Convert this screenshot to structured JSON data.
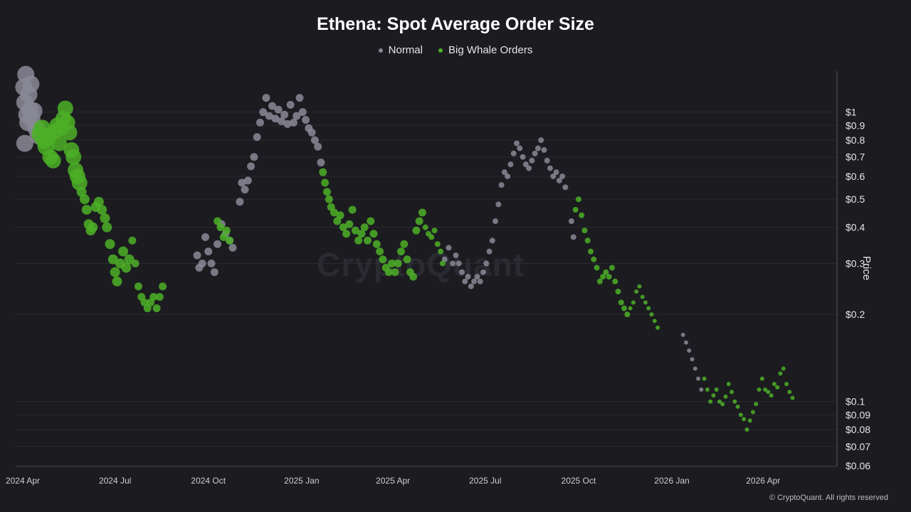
{
  "chart_data": {
    "type": "scatter",
    "title": "Ethena: Spot Average Order Size",
    "ylabel": "Price",
    "yscale": "log",
    "ylim": [
      0.06,
      1.45
    ],
    "y_ticks": [
      1,
      0.9,
      0.8,
      0.7,
      0.6,
      0.5,
      0.4,
      0.3,
      0.2,
      0.1,
      0.09,
      0.08,
      0.07,
      0.06
    ],
    "y_tick_labels": [
      "$1",
      "$0.9",
      "$0.8",
      "$0.7",
      "$0.6",
      "$0.5",
      "$0.4",
      "$0.3",
      "$0.2",
      "$0.1",
      "$0.09",
      "$0.08",
      "$0.07",
      "$0.06"
    ],
    "x_ticks": [
      "2024-04-01",
      "2024-07-01",
      "2024-10-01",
      "2025-01-01",
      "2025-04-01",
      "2025-07-01",
      "2025-10-01",
      "2026-01-01",
      "2026-04-01"
    ],
    "x_tick_labels": [
      "2024 Apr",
      "2024 Jul",
      "2024 Oct",
      "2025 Jan",
      "2025 Apr",
      "2025 Jul",
      "2025 Oct",
      "2026 Jan",
      "2026 Apr"
    ],
    "xlim": [
      "2024-03-25",
      "2026-06-10"
    ],
    "grid": true,
    "legend_position": "top-center",
    "series": [
      {
        "name": "Normal",
        "color": "#8a8896",
        "points": [
          [
            "2024-04-02",
            1.22
          ],
          [
            "2024-04-03",
            1.08
          ],
          [
            "2024-04-04",
            1.35
          ],
          [
            "2024-04-05",
            0.98
          ],
          [
            "2024-04-06",
            0.92
          ],
          [
            "2024-04-07",
            1.15
          ],
          [
            "2024-04-08",
            1.02
          ],
          [
            "2024-04-03",
            0.78
          ],
          [
            "2024-04-09",
            1.25
          ],
          [
            "2024-04-10",
            0.95
          ],
          [
            "2024-04-12",
            1.01
          ],
          [
            "2024-04-14",
            0.88
          ],
          [
            "2024-04-16",
            0.83
          ],
          [
            "2024-09-20",
            0.32
          ],
          [
            "2024-09-22",
            0.29
          ],
          [
            "2024-09-25",
            0.3
          ],
          [
            "2024-09-28",
            0.37
          ],
          [
            "2024-10-01",
            0.33
          ],
          [
            "2024-10-04",
            0.3
          ],
          [
            "2024-10-07",
            0.28
          ],
          [
            "2024-10-10",
            0.35
          ],
          [
            "2024-10-14",
            0.41
          ],
          [
            "2024-10-18",
            0.38
          ],
          [
            "2024-10-22",
            0.36
          ],
          [
            "2024-10-25",
            0.34
          ],
          [
            "2024-11-01",
            0.49
          ],
          [
            "2024-11-03",
            0.57
          ],
          [
            "2024-11-06",
            0.54
          ],
          [
            "2024-11-09",
            0.58
          ],
          [
            "2024-11-12",
            0.65
          ],
          [
            "2024-11-15",
            0.7
          ],
          [
            "2024-11-18",
            0.82
          ],
          [
            "2024-11-21",
            0.92
          ],
          [
            "2024-11-24",
            1.0
          ],
          [
            "2024-11-27",
            1.12
          ],
          [
            "2024-11-30",
            0.97
          ],
          [
            "2024-12-03",
            1.05
          ],
          [
            "2024-12-06",
            0.95
          ],
          [
            "2024-12-09",
            1.02
          ],
          [
            "2024-12-12",
            0.93
          ],
          [
            "2024-12-15",
            0.98
          ],
          [
            "2024-12-18",
            0.91
          ],
          [
            "2024-12-21",
            1.06
          ],
          [
            "2024-12-24",
            0.92
          ],
          [
            "2024-12-27",
            0.97
          ],
          [
            "2024-12-30",
            1.12
          ],
          [
            "2025-01-02",
            1.0
          ],
          [
            "2025-01-05",
            0.94
          ],
          [
            "2025-01-08",
            0.88
          ],
          [
            "2025-01-11",
            0.85
          ],
          [
            "2025-01-14",
            0.8
          ],
          [
            "2025-01-17",
            0.76
          ],
          [
            "2025-01-20",
            0.67
          ],
          [
            "2025-05-22",
            0.31
          ],
          [
            "2025-05-26",
            0.34
          ],
          [
            "2025-05-30",
            0.3
          ],
          [
            "2025-06-02",
            0.32
          ],
          [
            "2025-06-05",
            0.3
          ],
          [
            "2025-06-08",
            0.28
          ],
          [
            "2025-06-11",
            0.26
          ],
          [
            "2025-06-14",
            0.27
          ],
          [
            "2025-06-17",
            0.25
          ],
          [
            "2025-06-20",
            0.26
          ],
          [
            "2025-06-23",
            0.27
          ],
          [
            "2025-06-26",
            0.26
          ],
          [
            "2025-06-29",
            0.28
          ],
          [
            "2025-07-02",
            0.3
          ],
          [
            "2025-07-05",
            0.33
          ],
          [
            "2025-07-08",
            0.36
          ],
          [
            "2025-07-11",
            0.42
          ],
          [
            "2025-07-14",
            0.48
          ],
          [
            "2025-07-17",
            0.56
          ],
          [
            "2025-07-20",
            0.62
          ],
          [
            "2025-07-23",
            0.6
          ],
          [
            "2025-07-26",
            0.66
          ],
          [
            "2025-07-29",
            0.72
          ],
          [
            "2025-08-01",
            0.78
          ],
          [
            "2025-08-04",
            0.75
          ],
          [
            "2025-08-07",
            0.7
          ],
          [
            "2025-08-10",
            0.66
          ],
          [
            "2025-08-13",
            0.64
          ],
          [
            "2025-08-16",
            0.68
          ],
          [
            "2025-08-19",
            0.72
          ],
          [
            "2025-08-22",
            0.75
          ],
          [
            "2025-08-25",
            0.8
          ],
          [
            "2025-08-28",
            0.74
          ],
          [
            "2025-08-31",
            0.68
          ],
          [
            "2025-09-03",
            0.64
          ],
          [
            "2025-09-06",
            0.6
          ],
          [
            "2025-09-09",
            0.62
          ],
          [
            "2025-09-12",
            0.58
          ],
          [
            "2025-09-15",
            0.6
          ],
          [
            "2025-09-18",
            0.55
          ],
          [
            "2025-09-24",
            0.42
          ],
          [
            "2025-09-26",
            0.37
          ],
          [
            "2026-01-12",
            0.17
          ],
          [
            "2026-01-15",
            0.16
          ],
          [
            "2026-01-18",
            0.15
          ],
          [
            "2026-01-21",
            0.14
          ],
          [
            "2026-01-24",
            0.13
          ],
          [
            "2026-01-27",
            0.12
          ],
          [
            "2026-01-30",
            0.11
          ]
        ]
      },
      {
        "name": "Big Whale Orders",
        "color": "#4caf27",
        "points": [
          [
            "2024-04-18",
            0.84
          ],
          [
            "2024-04-20",
            0.88
          ],
          [
            "2024-04-22",
            0.8
          ],
          [
            "2024-04-24",
            0.76
          ],
          [
            "2024-04-26",
            0.82
          ],
          [
            "2024-04-28",
            0.7
          ],
          [
            "2024-05-01",
            0.68
          ],
          [
            "2024-05-03",
            0.86
          ],
          [
            "2024-05-05",
            0.9
          ],
          [
            "2024-05-07",
            0.78
          ],
          [
            "2024-05-09",
            0.88
          ],
          [
            "2024-05-11",
            0.95
          ],
          [
            "2024-05-13",
            1.03
          ],
          [
            "2024-05-15",
            0.92
          ],
          [
            "2024-05-17",
            0.85
          ],
          [
            "2024-05-19",
            0.74
          ],
          [
            "2024-05-21",
            0.7
          ],
          [
            "2024-05-23",
            0.63
          ],
          [
            "2024-05-25",
            0.6
          ],
          [
            "2024-05-27",
            0.57
          ],
          [
            "2024-05-29",
            0.53
          ],
          [
            "2024-06-01",
            0.5
          ],
          [
            "2024-06-03",
            0.46
          ],
          [
            "2024-06-05",
            0.41
          ],
          [
            "2024-06-07",
            0.39
          ],
          [
            "2024-06-09",
            0.4
          ],
          [
            "2024-06-12",
            0.47
          ],
          [
            "2024-06-15",
            0.49
          ],
          [
            "2024-06-18",
            0.46
          ],
          [
            "2024-06-21",
            0.43
          ],
          [
            "2024-06-23",
            0.4
          ],
          [
            "2024-06-26",
            0.35
          ],
          [
            "2024-06-29",
            0.31
          ],
          [
            "2024-07-01",
            0.28
          ],
          [
            "2024-07-03",
            0.26
          ],
          [
            "2024-07-06",
            0.3
          ],
          [
            "2024-07-09",
            0.33
          ],
          [
            "2024-07-12",
            0.29
          ],
          [
            "2024-07-15",
            0.31
          ],
          [
            "2024-07-18",
            0.36
          ],
          [
            "2024-07-21",
            0.3
          ],
          [
            "2024-07-24",
            0.25
          ],
          [
            "2024-07-27",
            0.23
          ],
          [
            "2024-07-30",
            0.22
          ],
          [
            "2024-08-02",
            0.21
          ],
          [
            "2024-08-05",
            0.22
          ],
          [
            "2024-08-08",
            0.23
          ],
          [
            "2024-08-11",
            0.21
          ],
          [
            "2024-08-14",
            0.23
          ],
          [
            "2024-08-17",
            0.25
          ],
          [
            "2024-10-10",
            0.42
          ],
          [
            "2024-10-13",
            0.4
          ],
          [
            "2024-10-16",
            0.37
          ],
          [
            "2024-10-19",
            0.39
          ],
          [
            "2024-10-22",
            0.36
          ],
          [
            "2025-01-22",
            0.62
          ],
          [
            "2025-01-24",
            0.57
          ],
          [
            "2025-01-26",
            0.53
          ],
          [
            "2025-01-28",
            0.5
          ],
          [
            "2025-01-30",
            0.47
          ],
          [
            "2025-02-02",
            0.45
          ],
          [
            "2025-02-05",
            0.42
          ],
          [
            "2025-02-08",
            0.44
          ],
          [
            "2025-02-11",
            0.4
          ],
          [
            "2025-02-14",
            0.38
          ],
          [
            "2025-02-17",
            0.41
          ],
          [
            "2025-02-20",
            0.46
          ],
          [
            "2025-02-23",
            0.39
          ],
          [
            "2025-02-26",
            0.36
          ],
          [
            "2025-03-01",
            0.38
          ],
          [
            "2025-03-04",
            0.4
          ],
          [
            "2025-03-07",
            0.36
          ],
          [
            "2025-03-10",
            0.42
          ],
          [
            "2025-03-13",
            0.38
          ],
          [
            "2025-03-16",
            0.35
          ],
          [
            "2025-03-19",
            0.33
          ],
          [
            "2025-03-22",
            0.31
          ],
          [
            "2025-03-25",
            0.29
          ],
          [
            "2025-03-28",
            0.28
          ],
          [
            "2025-03-31",
            0.3
          ],
          [
            "2025-04-03",
            0.28
          ],
          [
            "2025-04-06",
            0.3
          ],
          [
            "2025-04-09",
            0.33
          ],
          [
            "2025-04-12",
            0.35
          ],
          [
            "2025-04-15",
            0.31
          ],
          [
            "2025-04-18",
            0.28
          ],
          [
            "2025-04-21",
            0.27
          ],
          [
            "2025-04-24",
            0.39
          ],
          [
            "2025-04-27",
            0.42
          ],
          [
            "2025-04-30",
            0.45
          ],
          [
            "2025-05-03",
            0.4
          ],
          [
            "2025-05-06",
            0.38
          ],
          [
            "2025-05-09",
            0.37
          ],
          [
            "2025-05-12",
            0.39
          ],
          [
            "2025-05-15",
            0.35
          ],
          [
            "2025-05-18",
            0.33
          ],
          [
            "2025-05-20",
            0.3
          ],
          [
            "2025-09-28",
            0.46
          ],
          [
            "2025-10-01",
            0.5
          ],
          [
            "2025-10-04",
            0.44
          ],
          [
            "2025-10-07",
            0.39
          ],
          [
            "2025-10-10",
            0.36
          ],
          [
            "2025-10-13",
            0.33
          ],
          [
            "2025-10-16",
            0.31
          ],
          [
            "2025-10-19",
            0.29
          ],
          [
            "2025-10-22",
            0.26
          ],
          [
            "2025-10-25",
            0.27
          ],
          [
            "2025-10-28",
            0.28
          ],
          [
            "2025-10-31",
            0.27
          ],
          [
            "2025-11-03",
            0.29
          ],
          [
            "2025-11-06",
            0.26
          ],
          [
            "2025-11-09",
            0.24
          ],
          [
            "2025-11-12",
            0.22
          ],
          [
            "2025-11-15",
            0.21
          ],
          [
            "2025-11-18",
            0.2
          ],
          [
            "2025-11-21",
            0.21
          ],
          [
            "2025-11-24",
            0.22
          ],
          [
            "2025-11-27",
            0.24
          ],
          [
            "2025-11-30",
            0.25
          ],
          [
            "2025-12-03",
            0.23
          ],
          [
            "2025-12-06",
            0.22
          ],
          [
            "2025-12-09",
            0.21
          ],
          [
            "2025-12-12",
            0.2
          ],
          [
            "2025-12-15",
            0.19
          ],
          [
            "2025-12-18",
            0.18
          ],
          [
            "2026-02-02",
            0.12
          ],
          [
            "2026-02-05",
            0.11
          ],
          [
            "2026-02-08",
            0.1
          ],
          [
            "2026-02-11",
            0.105
          ],
          [
            "2026-02-14",
            0.11
          ],
          [
            "2026-02-17",
            0.1
          ],
          [
            "2026-02-20",
            0.098
          ],
          [
            "2026-02-23",
            0.104
          ],
          [
            "2026-02-26",
            0.115
          ],
          [
            "2026-03-01",
            0.108
          ],
          [
            "2026-03-04",
            0.1
          ],
          [
            "2026-03-07",
            0.096
          ],
          [
            "2026-03-10",
            0.09
          ],
          [
            "2026-03-13",
            0.087
          ],
          [
            "2026-03-16",
            0.08
          ],
          [
            "2026-03-19",
            0.086
          ],
          [
            "2026-03-22",
            0.092
          ],
          [
            "2026-03-25",
            0.098
          ],
          [
            "2026-03-28",
            0.11
          ],
          [
            "2026-03-31",
            0.12
          ],
          [
            "2026-04-03",
            0.11
          ],
          [
            "2026-04-06",
            0.108
          ],
          [
            "2026-04-09",
            0.105
          ],
          [
            "2026-04-12",
            0.115
          ],
          [
            "2026-04-15",
            0.112
          ],
          [
            "2026-04-18",
            0.125
          ],
          [
            "2026-04-21",
            0.13
          ],
          [
            "2026-04-24",
            0.115
          ],
          [
            "2026-04-27",
            0.108
          ],
          [
            "2026-04-30",
            0.103
          ]
        ]
      }
    ]
  },
  "title": "Ethena: Spot Average Order Size",
  "legend": [
    {
      "label": "Normal",
      "color": "#8a8896"
    },
    {
      "label": "Big Whale Orders",
      "color": "#4caf27"
    }
  ],
  "watermark": "CryptoQuant",
  "copyright": "© CryptoQuant. All rights reserved",
  "ylabel": "Price"
}
